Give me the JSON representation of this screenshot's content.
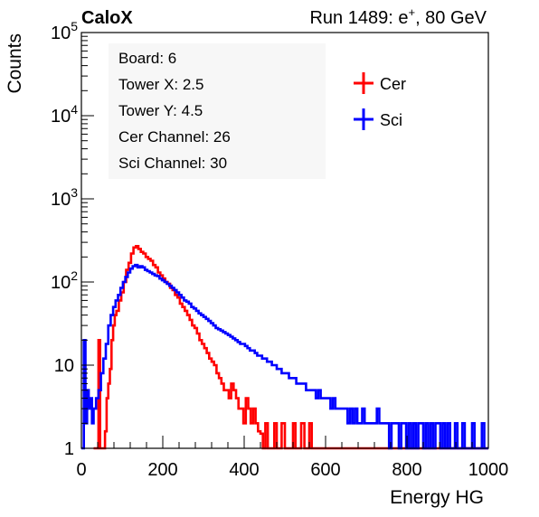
{
  "header": {
    "experiment": "CaloX",
    "run_prefix": "Run 1489: e",
    "run_sup": "+",
    "run_suffix": ", 80 GeV"
  },
  "info_box": [
    "Board: 6",
    "Tower X: 2.5",
    "Tower Y: 4.5",
    "Cer Channel: 26",
    "Sci Channel: 30"
  ],
  "colors": {
    "cer": "#ff0000",
    "sci": "#0000ff",
    "axis": "#000000",
    "info_bg": "#f7f7f7"
  },
  "chart_data": {
    "type": "line",
    "xlabel": "Energy HG",
    "ylabel": "Counts",
    "xlim": [
      0,
      1000
    ],
    "ylim": [
      1,
      100000
    ],
    "log_y": true,
    "grid": false,
    "legend_position": "top-right",
    "x_ticks": [
      0,
      200,
      400,
      600,
      800,
      1000
    ],
    "y_ticks": [
      {
        "value": 1,
        "base": "1",
        "exp": ""
      },
      {
        "value": 10,
        "base": "10",
        "exp": ""
      },
      {
        "value": 100,
        "base": "10",
        "exp": "2"
      },
      {
        "value": 1000,
        "base": "10",
        "exp": "3"
      },
      {
        "value": 10000,
        "base": "10",
        "exp": "4"
      },
      {
        "value": 100000,
        "base": "10",
        "exp": "5"
      }
    ],
    "series": [
      {
        "name": "Cer",
        "color": "#ff0000",
        "points": [
          [
            30,
            1
          ],
          [
            38,
            1
          ],
          [
            42,
            20
          ],
          [
            46,
            1
          ],
          [
            52,
            1
          ],
          [
            58,
            1.6
          ],
          [
            62,
            4
          ],
          [
            66,
            6
          ],
          [
            70,
            9
          ],
          [
            74,
            20
          ],
          [
            78,
            30
          ],
          [
            82,
            40
          ],
          [
            86,
            45
          ],
          [
            92,
            60
          ],
          [
            98,
            75
          ],
          [
            104,
            100
          ],
          [
            110,
            140
          ],
          [
            116,
            170
          ],
          [
            122,
            220
          ],
          [
            128,
            260
          ],
          [
            134,
            270
          ],
          [
            140,
            250
          ],
          [
            146,
            230
          ],
          [
            152,
            220
          ],
          [
            158,
            200
          ],
          [
            164,
            190
          ],
          [
            170,
            180
          ],
          [
            176,
            160
          ],
          [
            182,
            150
          ],
          [
            188,
            130
          ],
          [
            194,
            120
          ],
          [
            200,
            110
          ],
          [
            206,
            100
          ],
          [
            212,
            95
          ],
          [
            218,
            85
          ],
          [
            224,
            80
          ],
          [
            230,
            70
          ],
          [
            236,
            65
          ],
          [
            242,
            55
          ],
          [
            248,
            50
          ],
          [
            254,
            45
          ],
          [
            260,
            40
          ],
          [
            266,
            35
          ],
          [
            272,
            30
          ],
          [
            278,
            28
          ],
          [
            284,
            24
          ],
          [
            290,
            20
          ],
          [
            296,
            18
          ],
          [
            302,
            16
          ],
          [
            308,
            14
          ],
          [
            314,
            12
          ],
          [
            320,
            11
          ],
          [
            326,
            10
          ],
          [
            332,
            8
          ],
          [
            338,
            7
          ],
          [
            344,
            6
          ],
          [
            350,
            5
          ],
          [
            356,
            5
          ],
          [
            362,
            4
          ],
          [
            368,
            6
          ],
          [
            374,
            5
          ],
          [
            380,
            4
          ],
          [
            386,
            3
          ],
          [
            392,
            3
          ],
          [
            398,
            2
          ],
          [
            404,
            4
          ],
          [
            410,
            3
          ],
          [
            416,
            2
          ],
          [
            422,
            3
          ],
          [
            428,
            2
          ],
          [
            434,
            1.6
          ],
          [
            440,
            1.5
          ],
          [
            446,
            1
          ],
          [
            452,
            2
          ],
          [
            458,
            1
          ],
          [
            466,
            1
          ],
          [
            474,
            2
          ],
          [
            480,
            1
          ],
          [
            492,
            2
          ],
          [
            500,
            1
          ],
          [
            512,
            1
          ],
          [
            520,
            2
          ],
          [
            526,
            1
          ],
          [
            540,
            2
          ],
          [
            548,
            1
          ],
          [
            560,
            2
          ],
          [
            566,
            1
          ],
          [
            600,
            1
          ],
          [
            640,
            1
          ],
          [
            700,
            1
          ],
          [
            1000,
            1
          ]
        ]
      },
      {
        "name": "Sci",
        "color": "#0000ff",
        "points": [
          [
            0,
            1
          ],
          [
            6,
            20
          ],
          [
            10,
            2
          ],
          [
            14,
            5
          ],
          [
            18,
            3
          ],
          [
            22,
            4
          ],
          [
            26,
            2
          ],
          [
            30,
            3
          ],
          [
            36,
            4
          ],
          [
            42,
            5
          ],
          [
            48,
            8
          ],
          [
            54,
            12
          ],
          [
            60,
            18
          ],
          [
            66,
            30
          ],
          [
            72,
            40
          ],
          [
            78,
            50
          ],
          [
            84,
            60
          ],
          [
            90,
            70
          ],
          [
            96,
            85
          ],
          [
            102,
            100
          ],
          [
            108,
            115
          ],
          [
            114,
            130
          ],
          [
            120,
            145
          ],
          [
            126,
            155
          ],
          [
            132,
            160
          ],
          [
            138,
            150
          ],
          [
            144,
            155
          ],
          [
            150,
            150
          ],
          [
            156,
            140
          ],
          [
            162,
            135
          ],
          [
            168,
            130
          ],
          [
            174,
            125
          ],
          [
            180,
            120
          ],
          [
            186,
            118
          ],
          [
            192,
            110
          ],
          [
            198,
            105
          ],
          [
            204,
            100
          ],
          [
            210,
            95
          ],
          [
            216,
            90
          ],
          [
            222,
            85
          ],
          [
            228,
            80
          ],
          [
            234,
            75
          ],
          [
            240,
            70
          ],
          [
            246,
            65
          ],
          [
            252,
            60
          ],
          [
            258,
            58
          ],
          [
            264,
            55
          ],
          [
            270,
            50
          ],
          [
            276,
            48
          ],
          [
            282,
            45
          ],
          [
            288,
            42
          ],
          [
            294,
            40
          ],
          [
            300,
            38
          ],
          [
            306,
            36
          ],
          [
            312,
            34
          ],
          [
            318,
            32
          ],
          [
            324,
            30
          ],
          [
            330,
            28
          ],
          [
            336,
            27
          ],
          [
            342,
            26
          ],
          [
            348,
            25
          ],
          [
            354,
            24
          ],
          [
            360,
            23
          ],
          [
            366,
            22
          ],
          [
            372,
            21
          ],
          [
            378,
            20
          ],
          [
            384,
            19
          ],
          [
            390,
            18
          ],
          [
            396,
            18
          ],
          [
            402,
            17
          ],
          [
            408,
            16
          ],
          [
            414,
            15
          ],
          [
            420,
            15
          ],
          [
            426,
            14
          ],
          [
            432,
            13
          ],
          [
            438,
            13
          ],
          [
            444,
            12
          ],
          [
            450,
            12
          ],
          [
            456,
            11
          ],
          [
            462,
            11
          ],
          [
            468,
            10
          ],
          [
            474,
            10
          ],
          [
            480,
            9
          ],
          [
            486,
            9
          ],
          [
            492,
            8
          ],
          [
            498,
            8
          ],
          [
            504,
            8
          ],
          [
            510,
            7
          ],
          [
            516,
            7
          ],
          [
            522,
            7
          ],
          [
            528,
            6
          ],
          [
            534,
            6
          ],
          [
            540,
            6
          ],
          [
            546,
            6
          ],
          [
            552,
            5
          ],
          [
            558,
            5
          ],
          [
            564,
            5
          ],
          [
            570,
            5
          ],
          [
            576,
            4
          ],
          [
            582,
            5
          ],
          [
            588,
            4
          ],
          [
            594,
            4
          ],
          [
            600,
            4
          ],
          [
            606,
            4
          ],
          [
            612,
            3
          ],
          [
            618,
            4
          ],
          [
            624,
            3
          ],
          [
            630,
            3
          ],
          [
            636,
            3
          ],
          [
            642,
            3
          ],
          [
            648,
            3
          ],
          [
            654,
            2
          ],
          [
            660,
            3
          ],
          [
            666,
            2
          ],
          [
            672,
            3
          ],
          [
            678,
            2
          ],
          [
            684,
            2
          ],
          [
            690,
            3
          ],
          [
            696,
            2
          ],
          [
            702,
            2
          ],
          [
            708,
            2
          ],
          [
            714,
            2
          ],
          [
            720,
            2
          ],
          [
            726,
            3
          ],
          [
            732,
            2
          ],
          [
            738,
            2
          ],
          [
            744,
            2
          ],
          [
            750,
            2
          ],
          [
            756,
            1
          ],
          [
            762,
            2
          ],
          [
            768,
            2
          ],
          [
            774,
            2
          ],
          [
            780,
            1
          ],
          [
            786,
            2
          ],
          [
            792,
            2
          ],
          [
            798,
            1
          ],
          [
            804,
            2
          ],
          [
            810,
            1
          ],
          [
            816,
            2
          ],
          [
            822,
            1
          ],
          [
            828,
            2
          ],
          [
            834,
            2
          ],
          [
            840,
            1
          ],
          [
            846,
            2
          ],
          [
            852,
            1
          ],
          [
            858,
            2
          ],
          [
            864,
            1
          ],
          [
            870,
            2
          ],
          [
            876,
            2
          ],
          [
            882,
            1
          ],
          [
            888,
            2
          ],
          [
            894,
            1
          ],
          [
            900,
            2
          ],
          [
            906,
            1
          ],
          [
            912,
            1
          ],
          [
            918,
            2
          ],
          [
            924,
            1
          ],
          [
            930,
            1
          ],
          [
            936,
            2
          ],
          [
            942,
            1
          ],
          [
            948,
            1
          ],
          [
            954,
            1
          ],
          [
            960,
            2
          ],
          [
            966,
            1
          ],
          [
            972,
            1
          ],
          [
            978,
            1
          ],
          [
            984,
            2
          ],
          [
            990,
            1
          ],
          [
            996,
            1
          ],
          [
            1000,
            1
          ]
        ]
      }
    ]
  }
}
